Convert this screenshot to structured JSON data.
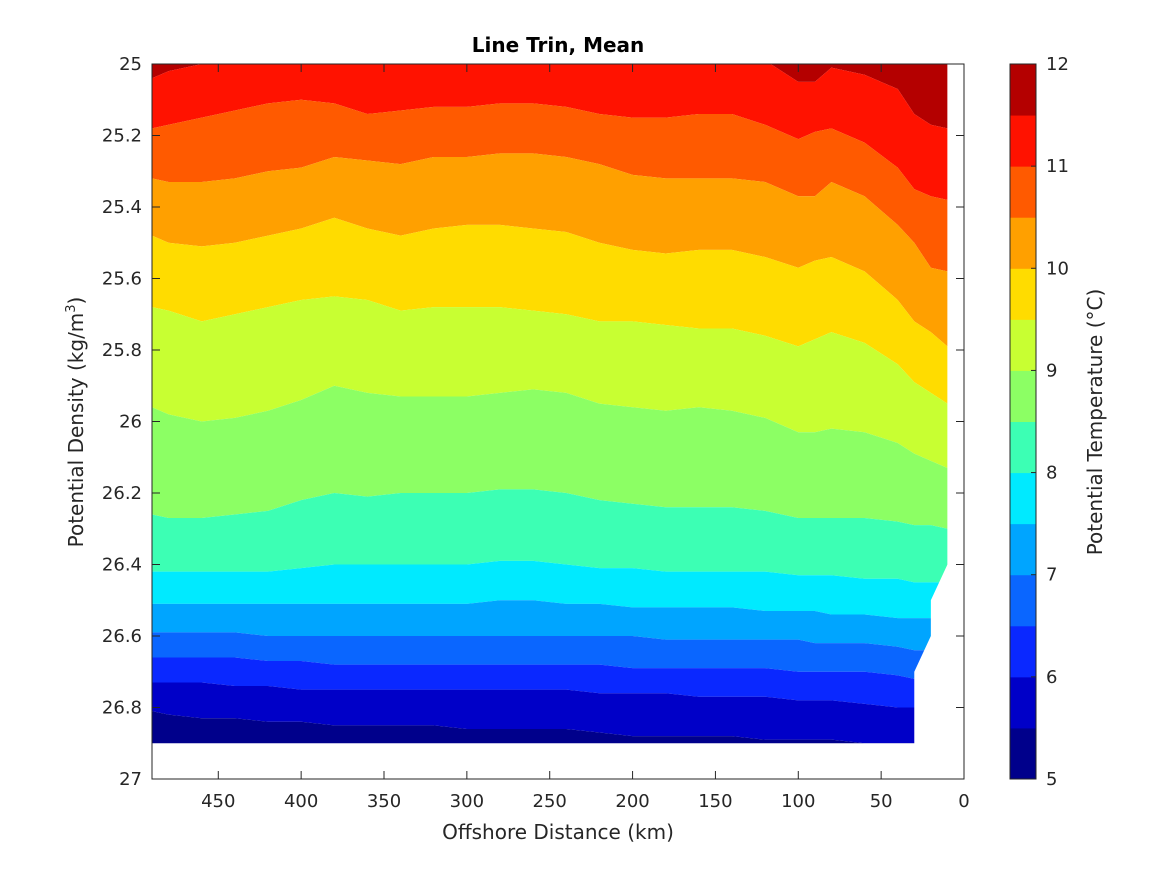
{
  "chart_data": {
    "type": "filled-contour",
    "title": "Line Trin, Mean",
    "xlabel": "Offshore Distance (km)",
    "ylabel_main": "Potential Density (kg/m",
    "ylabel_sup": "3",
    "ylabel_end": ")",
    "xlim": [
      490,
      0
    ],
    "ylim": [
      25,
      27
    ],
    "x_reversed": true,
    "y_reversed": true,
    "x_ticks": [
      450,
      400,
      350,
      300,
      250,
      200,
      150,
      100,
      50,
      0
    ],
    "y_ticks": [
      "25",
      "25.2",
      "25.4",
      "25.6",
      "25.8",
      "26",
      "26.2",
      "26.4",
      "26.6",
      "26.8",
      "27"
    ],
    "y_tick_values": [
      25,
      25.2,
      25.4,
      25.6,
      25.8,
      26,
      26.2,
      26.4,
      26.6,
      26.8,
      27
    ],
    "grid": false,
    "colorbar": {
      "label": "Potential Temperature (°C)",
      "range": [
        5,
        12
      ],
      "ticks": [
        12,
        11,
        10,
        9,
        8,
        7,
        6,
        5
      ],
      "levels": [
        5,
        5.5,
        6,
        6.5,
        7,
        7.5,
        8,
        8.5,
        9,
        9.5,
        10,
        10.5,
        11,
        11.5,
        12
      ],
      "colors": [
        "#00008b",
        "#0000c8",
        "#0a28ff",
        "#0a66ff",
        "#00a5ff",
        "#00eaff",
        "#3cffb4",
        "#8cff64",
        "#c8ff32",
        "#ffdc00",
        "#ffa000",
        "#ff5a00",
        "#ff1200",
        "#b40000"
      ]
    },
    "data_extent": {
      "density_top": 25.0,
      "density_bottom": 26.9,
      "edge_x": [
        10,
        10,
        20,
        20,
        30,
        30
      ],
      "edge_density": [
        25.0,
        26.4,
        26.5,
        26.6,
        26.7,
        26.9
      ]
    },
    "x": [
      490,
      480,
      460,
      440,
      420,
      400,
      380,
      360,
      340,
      320,
      300,
      280,
      260,
      240,
      220,
      200,
      180,
      160,
      140,
      120,
      100,
      90,
      80,
      60,
      40,
      30,
      20,
      10
    ],
    "isotherms": [
      {
        "level": 11.5,
        "density": [
          25.04,
          25.02,
          25.0,
          24.99,
          24.99,
          24.99,
          24.99,
          24.99,
          24.99,
          24.99,
          24.99,
          24.99,
          24.99,
          24.99,
          24.99,
          24.99,
          24.99,
          24.99,
          24.99,
          24.99,
          25.05,
          25.05,
          25.01,
          25.03,
          25.07,
          25.14,
          25.17,
          25.18
        ]
      },
      {
        "level": 11.0,
        "density": [
          25.18,
          25.17,
          25.15,
          25.13,
          25.11,
          25.1,
          25.11,
          25.14,
          25.13,
          25.12,
          25.12,
          25.11,
          25.11,
          25.12,
          25.14,
          25.15,
          25.15,
          25.14,
          25.14,
          25.17,
          25.21,
          25.19,
          25.18,
          25.22,
          25.29,
          25.35,
          25.37,
          25.38
        ]
      },
      {
        "level": 10.5,
        "density": [
          25.32,
          25.33,
          25.33,
          25.32,
          25.3,
          25.29,
          25.26,
          25.27,
          25.28,
          25.26,
          25.26,
          25.25,
          25.25,
          25.26,
          25.28,
          25.31,
          25.32,
          25.32,
          25.32,
          25.33,
          25.37,
          25.37,
          25.33,
          25.37,
          25.45,
          25.5,
          25.57,
          25.58
        ]
      },
      {
        "level": 10.0,
        "density": [
          25.48,
          25.5,
          25.51,
          25.5,
          25.48,
          25.46,
          25.43,
          25.46,
          25.48,
          25.46,
          25.45,
          25.45,
          25.46,
          25.47,
          25.5,
          25.52,
          25.53,
          25.52,
          25.52,
          25.54,
          25.57,
          25.55,
          25.54,
          25.58,
          25.66,
          25.72,
          25.75,
          25.79
        ]
      },
      {
        "level": 9.5,
        "density": [
          25.68,
          25.69,
          25.72,
          25.7,
          25.68,
          25.66,
          25.65,
          25.66,
          25.69,
          25.68,
          25.68,
          25.68,
          25.69,
          25.7,
          25.72,
          25.72,
          25.73,
          25.74,
          25.74,
          25.76,
          25.79,
          25.77,
          25.75,
          25.78,
          25.84,
          25.89,
          25.92,
          25.95
        ]
      },
      {
        "level": 9.0,
        "density": [
          25.96,
          25.98,
          26.0,
          25.99,
          25.97,
          25.94,
          25.9,
          25.92,
          25.93,
          25.93,
          25.93,
          25.92,
          25.91,
          25.92,
          25.95,
          25.96,
          25.97,
          25.96,
          25.97,
          25.99,
          26.03,
          26.03,
          26.02,
          26.03,
          26.06,
          26.09,
          26.11,
          26.13
        ]
      },
      {
        "level": 8.5,
        "density": [
          26.26,
          26.27,
          26.27,
          26.26,
          26.25,
          26.22,
          26.2,
          26.21,
          26.2,
          26.2,
          26.2,
          26.19,
          26.19,
          26.2,
          26.22,
          26.23,
          26.24,
          26.24,
          26.24,
          26.25,
          26.27,
          26.27,
          26.27,
          26.27,
          26.28,
          26.29,
          26.29,
          26.3
        ]
      },
      {
        "level": 8.0,
        "density": [
          26.42,
          26.42,
          26.42,
          26.42,
          26.42,
          26.41,
          26.4,
          26.4,
          26.4,
          26.4,
          26.4,
          26.39,
          26.39,
          26.4,
          26.41,
          26.41,
          26.42,
          26.42,
          26.42,
          26.42,
          26.43,
          26.43,
          26.43,
          26.44,
          26.44,
          26.45,
          26.45,
          26.45
        ]
      },
      {
        "level": 7.5,
        "density": [
          26.51,
          26.51,
          26.51,
          26.51,
          26.51,
          26.51,
          26.51,
          26.51,
          26.51,
          26.51,
          26.51,
          26.5,
          26.5,
          26.51,
          26.51,
          26.52,
          26.52,
          26.52,
          26.52,
          26.53,
          26.53,
          26.53,
          26.54,
          26.54,
          26.55,
          26.55,
          26.55,
          26.55
        ]
      },
      {
        "level": 7.0,
        "density": [
          26.59,
          26.59,
          26.59,
          26.59,
          26.6,
          26.6,
          26.6,
          26.6,
          26.6,
          26.6,
          26.6,
          26.6,
          26.6,
          26.6,
          26.6,
          26.6,
          26.61,
          26.61,
          26.61,
          26.61,
          26.61,
          26.62,
          26.62,
          26.62,
          26.63,
          26.64,
          26.64,
          26.64
        ]
      },
      {
        "level": 6.5,
        "density": [
          26.66,
          26.66,
          26.66,
          26.66,
          26.67,
          26.67,
          26.68,
          26.68,
          26.68,
          26.68,
          26.68,
          26.68,
          26.68,
          26.68,
          26.68,
          26.69,
          26.69,
          26.69,
          26.69,
          26.69,
          26.7,
          26.7,
          26.7,
          26.7,
          26.71,
          26.72,
          26.72,
          26.72
        ]
      },
      {
        "level": 6.0,
        "density": [
          26.73,
          26.73,
          26.73,
          26.74,
          26.74,
          26.75,
          26.75,
          26.75,
          26.75,
          26.75,
          26.75,
          26.75,
          26.75,
          26.75,
          26.76,
          26.76,
          26.76,
          26.77,
          26.77,
          26.77,
          26.78,
          26.78,
          26.78,
          26.79,
          26.8,
          26.8,
          26.8,
          26.8
        ]
      },
      {
        "level": 5.5,
        "density": [
          26.81,
          26.82,
          26.83,
          26.83,
          26.84,
          26.84,
          26.85,
          26.85,
          26.85,
          26.85,
          26.86,
          26.86,
          26.86,
          26.86,
          26.87,
          26.88,
          26.88,
          26.88,
          26.88,
          26.89,
          26.89,
          26.89,
          26.89,
          26.9,
          26.9,
          26.9,
          26.9,
          26.9
        ]
      }
    ]
  }
}
